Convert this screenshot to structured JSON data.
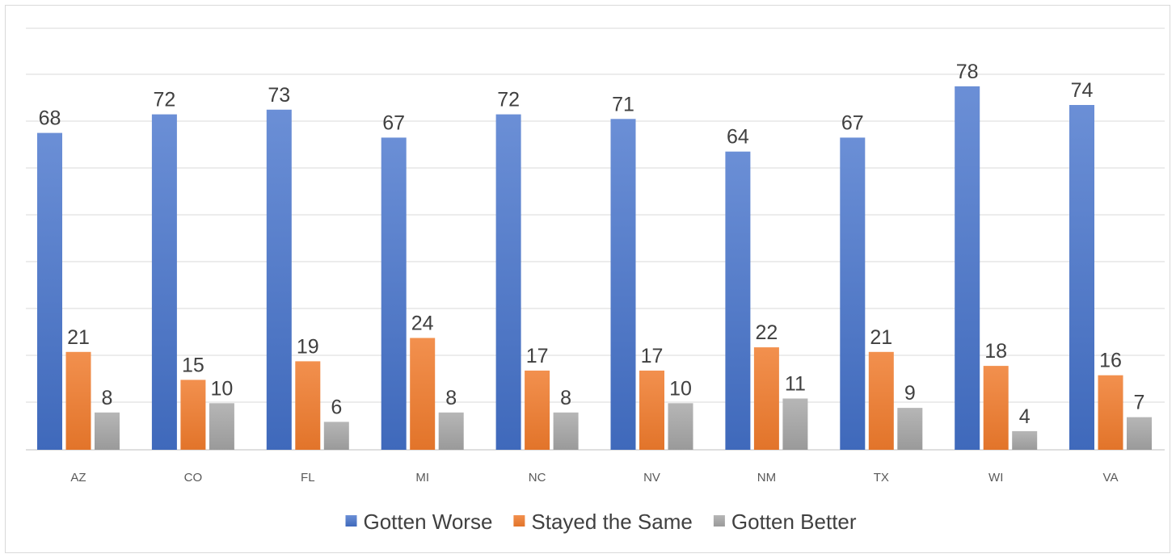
{
  "chart_data": {
    "type": "bar",
    "title": "",
    "xlabel": "",
    "ylabel": "",
    "ylim": [
      0,
      90
    ],
    "grid": true,
    "legend_position": "bottom",
    "categories": [
      "AZ",
      "CO",
      "FL",
      "MI",
      "NC",
      "NV",
      "NM",
      "TX",
      "WI",
      "VA"
    ],
    "series": [
      {
        "name": "Gotten Worse",
        "color": "#4472c4",
        "values": [
          68,
          72,
          73,
          67,
          72,
          71,
          64,
          67,
          78,
          74
        ]
      },
      {
        "name": "Stayed the Same",
        "color": "#ed7d31",
        "values": [
          21,
          15,
          19,
          24,
          17,
          17,
          22,
          21,
          18,
          16
        ]
      },
      {
        "name": "Gotten Better",
        "color": "#a5a5a5",
        "values": [
          8,
          10,
          6,
          8,
          8,
          10,
          11,
          9,
          4,
          7
        ]
      }
    ]
  }
}
